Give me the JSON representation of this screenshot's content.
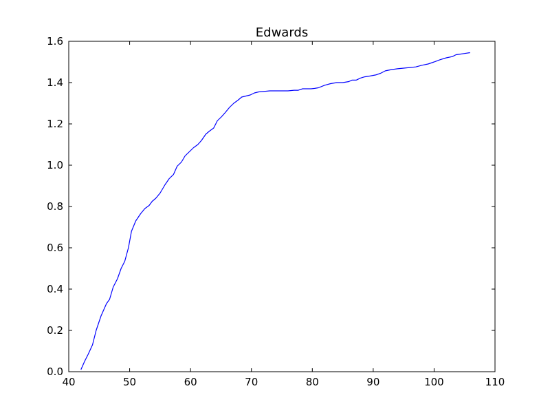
{
  "chart_data": {
    "type": "line",
    "title": "Edwards",
    "xlabel": "",
    "ylabel": "",
    "xlim": [
      40,
      110
    ],
    "ylim": [
      0.0,
      1.6
    ],
    "xticks": [
      40,
      50,
      60,
      70,
      80,
      90,
      100,
      110
    ],
    "xtick_labels": [
      "40",
      "50",
      "60",
      "70",
      "80",
      "90",
      "100",
      "110"
    ],
    "yticks": [
      0.0,
      0.2,
      0.4,
      0.6,
      0.8,
      1.0,
      1.2,
      1.4,
      1.6
    ],
    "ytick_labels": [
      "0.0",
      "0.2",
      "0.4",
      "0.6",
      "0.8",
      "1.0",
      "1.2",
      "1.4",
      "1.6"
    ],
    "grid": false,
    "line_color": "#0000ff",
    "series": [
      {
        "x": [
          42,
          42.6,
          43.2,
          43.9,
          44.5,
          45.3,
          46.2,
          46.7,
          47.3,
          48.0,
          48.6,
          49.2,
          49.8,
          50.3,
          51.0,
          51.8,
          52.5,
          53.2,
          53.7,
          54.3,
          55.0,
          55.8,
          56.5,
          57.2,
          57.8,
          58.5,
          59.1,
          59.8,
          60.5,
          61.2,
          61.8,
          62.5,
          63.1,
          63.8,
          64.4,
          65.1,
          65.7,
          66.4,
          67.1,
          67.8,
          68.4,
          69.1,
          69.8,
          70.5,
          71.2,
          72.0,
          73.0,
          74.0,
          75.0,
          76.0,
          77.0,
          77.7,
          78.4,
          79.0,
          79.8,
          80.4,
          81.0,
          82.0,
          83.0,
          84.0,
          85.0,
          86.0,
          86.5,
          87.2,
          87.9,
          88.6,
          89.5,
          90.4,
          91.2,
          92.0,
          93.0,
          94.0,
          95.0,
          96.0,
          97.0,
          98.0,
          99.0,
          100.0,
          101.0,
          102.0,
          103.0,
          103.6,
          104.3,
          105.0,
          105.9
        ],
        "y": [
          0.01,
          0.05,
          0.085,
          0.13,
          0.2,
          0.27,
          0.33,
          0.35,
          0.41,
          0.45,
          0.5,
          0.535,
          0.6,
          0.68,
          0.73,
          0.765,
          0.79,
          0.805,
          0.825,
          0.84,
          0.865,
          0.905,
          0.935,
          0.955,
          0.995,
          1.015,
          1.045,
          1.065,
          1.085,
          1.1,
          1.12,
          1.15,
          1.165,
          1.18,
          1.215,
          1.235,
          1.255,
          1.28,
          1.3,
          1.315,
          1.33,
          1.335,
          1.34,
          1.35,
          1.355,
          1.357,
          1.36,
          1.36,
          1.36,
          1.36,
          1.363,
          1.363,
          1.37,
          1.37,
          1.37,
          1.372,
          1.375,
          1.387,
          1.395,
          1.4,
          1.4,
          1.405,
          1.412,
          1.412,
          1.422,
          1.428,
          1.432,
          1.437,
          1.445,
          1.457,
          1.463,
          1.467,
          1.47,
          1.473,
          1.476,
          1.484,
          1.49,
          1.5,
          1.511,
          1.52,
          1.526,
          1.535,
          1.538,
          1.541,
          1.545
        ]
      }
    ]
  }
}
